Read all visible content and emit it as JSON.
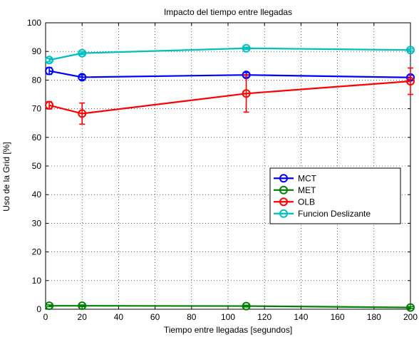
{
  "chart_data": {
    "type": "line",
    "title": "Impacto del tiempo entre llegadas",
    "xlabel": "Tiempo entre llegadas [segundos]",
    "ylabel": "Uso de la Grid [%]",
    "xlim": [
      0,
      200
    ],
    "ylim": [
      0,
      100
    ],
    "xticks": [
      0,
      20,
      40,
      60,
      80,
      100,
      120,
      140,
      160,
      180,
      200
    ],
    "yticks": [
      0,
      10,
      20,
      30,
      40,
      50,
      60,
      70,
      80,
      90,
      100
    ],
    "grid": true,
    "legend_position": "right-middle",
    "x": [
      2,
      20,
      110,
      200
    ],
    "series": [
      {
        "name": "MCT",
        "color": "#0000ff",
        "values": [
          83.2,
          81.0,
          81.8,
          80.9
        ],
        "errors": [
          1.2,
          0.8,
          0.8,
          0.8
        ]
      },
      {
        "name": "MET",
        "color": "#008000",
        "values": [
          1.2,
          1.2,
          1.1,
          0.6
        ],
        "errors": [
          0.3,
          0.3,
          0.3,
          0.3
        ]
      },
      {
        "name": "OLB",
        "color": "#ff0000",
        "values": [
          71.2,
          68.3,
          75.3,
          79.6
        ],
        "errors": [
          1.3,
          3.7,
          6.5,
          4.6
        ]
      },
      {
        "name": "Funcion Deslizante",
        "color": "#00bfbf",
        "values": [
          87.0,
          89.4,
          91.1,
          90.5
        ],
        "errors": [
          0.6,
          0.5,
          0.4,
          0.4
        ]
      }
    ]
  }
}
